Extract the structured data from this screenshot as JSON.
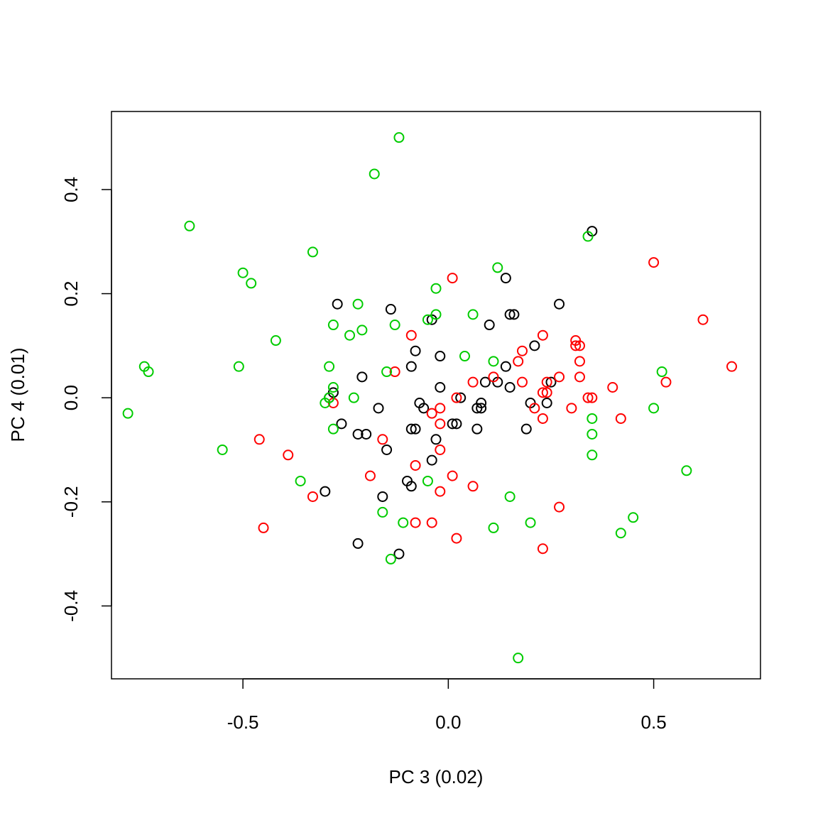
{
  "chart_data": {
    "type": "scatter",
    "title": "",
    "xlabel": "PC 3 (0.02)",
    "ylabel": "PC 4 (0.01)",
    "xlim": [
      -0.82,
      0.76
    ],
    "ylim": [
      -0.54,
      0.55
    ],
    "xticks": [
      -0.5,
      0.0,
      0.5
    ],
    "xtick_labels": [
      "-0.5",
      "0.0",
      "0.5"
    ],
    "yticks": [
      -0.4,
      -0.2,
      0.0,
      0.2,
      0.4
    ],
    "ytick_labels": [
      "-0.4",
      "-0.2",
      "0.0",
      "0.2",
      "0.4"
    ],
    "grid": false,
    "legend": "none",
    "marker": "open-circle",
    "series": [
      {
        "color": "#000000",
        "points": [
          [
            0.35,
            0.32
          ],
          [
            0.14,
            0.23
          ],
          [
            0.27,
            0.18
          ],
          [
            -0.27,
            0.18
          ],
          [
            -0.14,
            0.17
          ],
          [
            0.16,
            0.16
          ],
          [
            0.15,
            0.16
          ],
          [
            -0.04,
            0.15
          ],
          [
            0.1,
            0.14
          ],
          [
            0.21,
            0.1
          ],
          [
            -0.08,
            0.09
          ],
          [
            -0.02,
            0.08
          ],
          [
            0.14,
            0.06
          ],
          [
            -0.09,
            0.06
          ],
          [
            -0.21,
            0.04
          ],
          [
            0.09,
            0.03
          ],
          [
            0.25,
            0.03
          ],
          [
            0.12,
            0.03
          ],
          [
            -0.02,
            0.02
          ],
          [
            0.15,
            0.02
          ],
          [
            0.03,
            0.0
          ],
          [
            -0.29,
            0.0
          ],
          [
            -0.28,
            0.01
          ],
          [
            0.2,
            -0.01
          ],
          [
            0.08,
            -0.01
          ],
          [
            0.08,
            -0.02
          ],
          [
            0.07,
            -0.02
          ],
          [
            -0.07,
            -0.01
          ],
          [
            -0.06,
            -0.02
          ],
          [
            0.24,
            -0.01
          ],
          [
            0.02,
            -0.05
          ],
          [
            0.01,
            -0.05
          ],
          [
            -0.17,
            -0.02
          ],
          [
            -0.26,
            -0.05
          ],
          [
            0.19,
            -0.06
          ],
          [
            -0.08,
            -0.06
          ],
          [
            -0.09,
            -0.06
          ],
          [
            0.07,
            -0.06
          ],
          [
            -0.22,
            -0.07
          ],
          [
            -0.2,
            -0.07
          ],
          [
            -0.03,
            -0.08
          ],
          [
            -0.15,
            -0.1
          ],
          [
            -0.04,
            -0.12
          ],
          [
            -0.1,
            -0.16
          ],
          [
            -0.09,
            -0.17
          ],
          [
            -0.3,
            -0.18
          ],
          [
            -0.16,
            -0.19
          ],
          [
            -0.22,
            -0.28
          ],
          [
            -0.12,
            -0.3
          ]
        ]
      },
      {
        "color": "#ff0000",
        "points": [
          [
            0.5,
            0.26
          ],
          [
            0.01,
            0.23
          ],
          [
            0.62,
            0.15
          ],
          [
            -0.09,
            0.12
          ],
          [
            0.23,
            0.12
          ],
          [
            0.31,
            0.11
          ],
          [
            0.32,
            0.1
          ],
          [
            0.31,
            0.1
          ],
          [
            0.18,
            0.09
          ],
          [
            0.32,
            0.07
          ],
          [
            0.17,
            0.07
          ],
          [
            0.69,
            0.06
          ],
          [
            -0.13,
            0.05
          ],
          [
            0.27,
            0.04
          ],
          [
            0.11,
            0.04
          ],
          [
            0.32,
            0.04
          ],
          [
            0.53,
            0.03
          ],
          [
            0.18,
            0.03
          ],
          [
            0.24,
            0.03
          ],
          [
            0.06,
            0.03
          ],
          [
            0.4,
            0.02
          ],
          [
            0.23,
            0.01
          ],
          [
            0.24,
            0.01
          ],
          [
            0.34,
            0.0
          ],
          [
            0.35,
            0.0
          ],
          [
            0.02,
            0.0
          ],
          [
            -0.28,
            -0.01
          ],
          [
            -0.02,
            -0.02
          ],
          [
            0.21,
            -0.02
          ],
          [
            0.3,
            -0.02
          ],
          [
            -0.04,
            -0.03
          ],
          [
            -0.02,
            -0.05
          ],
          [
            0.42,
            -0.04
          ],
          [
            0.23,
            -0.04
          ],
          [
            -0.46,
            -0.08
          ],
          [
            -0.16,
            -0.08
          ],
          [
            -0.02,
            -0.1
          ],
          [
            -0.39,
            -0.11
          ],
          [
            -0.08,
            -0.13
          ],
          [
            -0.19,
            -0.15
          ],
          [
            0.01,
            -0.15
          ],
          [
            0.06,
            -0.17
          ],
          [
            -0.02,
            -0.18
          ],
          [
            -0.33,
            -0.19
          ],
          [
            0.27,
            -0.21
          ],
          [
            -0.08,
            -0.24
          ],
          [
            -0.04,
            -0.24
          ],
          [
            -0.45,
            -0.25
          ],
          [
            0.02,
            -0.27
          ],
          [
            0.23,
            -0.29
          ]
        ]
      },
      {
        "color": "#00cc00",
        "points": [
          [
            -0.12,
            0.5
          ],
          [
            -0.18,
            0.43
          ],
          [
            0.34,
            0.31
          ],
          [
            -0.63,
            0.33
          ],
          [
            -0.33,
            0.28
          ],
          [
            0.12,
            0.25
          ],
          [
            -0.5,
            0.24
          ],
          [
            -0.48,
            0.22
          ],
          [
            -0.03,
            0.21
          ],
          [
            -0.22,
            0.18
          ],
          [
            0.06,
            0.16
          ],
          [
            -0.03,
            0.16
          ],
          [
            -0.05,
            0.15
          ],
          [
            -0.28,
            0.14
          ],
          [
            -0.13,
            0.14
          ],
          [
            -0.21,
            0.13
          ],
          [
            -0.24,
            0.12
          ],
          [
            -0.42,
            0.11
          ],
          [
            0.04,
            0.08
          ],
          [
            0.11,
            0.07
          ],
          [
            -0.51,
            0.06
          ],
          [
            -0.29,
            0.06
          ],
          [
            -0.74,
            0.06
          ],
          [
            -0.73,
            0.05
          ],
          [
            -0.15,
            0.05
          ],
          [
            0.52,
            0.05
          ],
          [
            -0.28,
            0.02
          ],
          [
            -0.23,
            0.0
          ],
          [
            -0.29,
            0.0
          ],
          [
            -0.3,
            -0.01
          ],
          [
            -0.78,
            -0.03
          ],
          [
            0.5,
            -0.02
          ],
          [
            0.35,
            -0.04
          ],
          [
            -0.28,
            -0.06
          ],
          [
            0.35,
            -0.07
          ],
          [
            -0.55,
            -0.1
          ],
          [
            0.35,
            -0.11
          ],
          [
            0.58,
            -0.14
          ],
          [
            -0.36,
            -0.16
          ],
          [
            -0.05,
            -0.16
          ],
          [
            0.15,
            -0.19
          ],
          [
            -0.16,
            -0.22
          ],
          [
            0.45,
            -0.23
          ],
          [
            -0.11,
            -0.24
          ],
          [
            0.2,
            -0.24
          ],
          [
            0.11,
            -0.25
          ],
          [
            0.42,
            -0.26
          ],
          [
            -0.14,
            -0.31
          ],
          [
            0.17,
            -0.5
          ]
        ]
      }
    ]
  }
}
